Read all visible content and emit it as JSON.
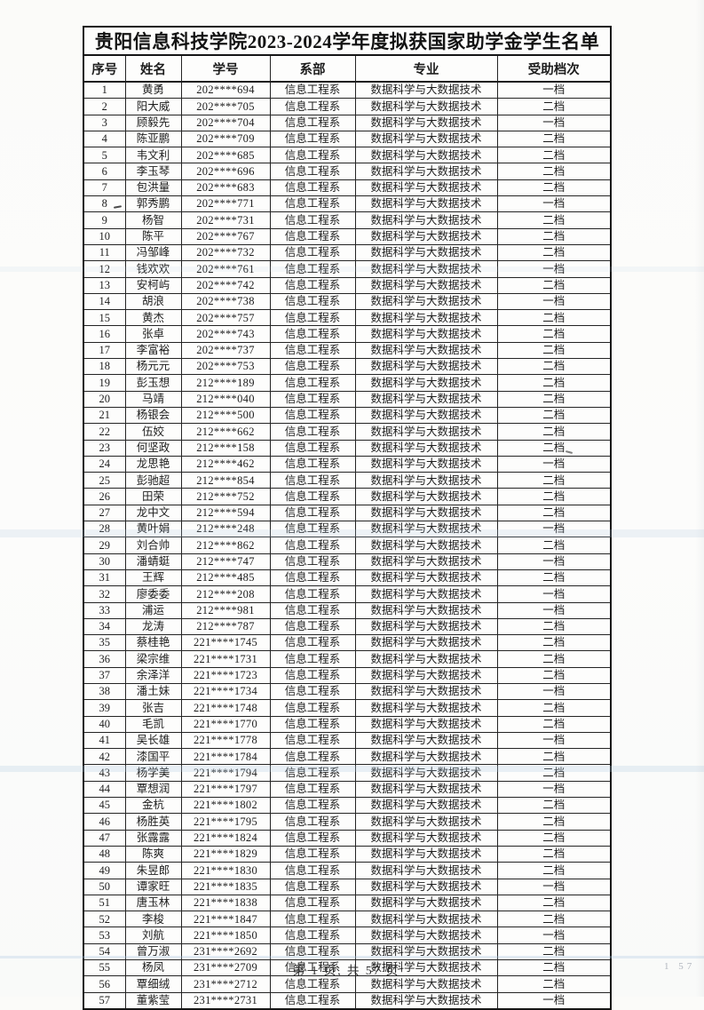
{
  "page": {
    "title": "贵阳信息科技学院2023-2024学年度拟获国家助学金学生名单",
    "footer": "第 1 页, 共 57 页",
    "edge_mark": "1 57"
  },
  "table": {
    "columns": [
      "序号",
      "姓名",
      "学号",
      "系部",
      "专业",
      "受助档次"
    ],
    "cell_names": [
      "cell-seq",
      "cell-name",
      "cell-student-id",
      "cell-department",
      "cell-major",
      "cell-grant-level"
    ],
    "rows": [
      [
        "1",
        "黄勇",
        "202****694",
        "信息工程系",
        "数据科学与大数据技术",
        "一档"
      ],
      [
        "2",
        "阳大威",
        "202****705",
        "信息工程系",
        "数据科学与大数据技术",
        "二档"
      ],
      [
        "3",
        "顾毅先",
        "202****704",
        "信息工程系",
        "数据科学与大数据技术",
        "一档"
      ],
      [
        "4",
        "陈亚鹏",
        "202****709",
        "信息工程系",
        "数据科学与大数据技术",
        "二档"
      ],
      [
        "5",
        "韦文利",
        "202****685",
        "信息工程系",
        "数据科学与大数据技术",
        "二档"
      ],
      [
        "6",
        "李玉琴",
        "202****696",
        "信息工程系",
        "数据科学与大数据技术",
        "二档"
      ],
      [
        "7",
        "包洪量",
        "202****683",
        "信息工程系",
        "数据科学与大数据技术",
        "二档"
      ],
      [
        "8",
        "郭秀鹏",
        "202****771",
        "信息工程系",
        "数据科学与大数据技术",
        "一档"
      ],
      [
        "9",
        "杨智",
        "202****731",
        "信息工程系",
        "数据科学与大数据技术",
        "二档"
      ],
      [
        "10",
        "陈平",
        "202****767",
        "信息工程系",
        "数据科学与大数据技术",
        "二档"
      ],
      [
        "11",
        "冯邹峰",
        "202****732",
        "信息工程系",
        "数据科学与大数据技术",
        "二档"
      ],
      [
        "12",
        "钱欢欢",
        "202****761",
        "信息工程系",
        "数据科学与大数据技术",
        "一档"
      ],
      [
        "13",
        "安柯屿",
        "202****742",
        "信息工程系",
        "数据科学与大数据技术",
        "二档"
      ],
      [
        "14",
        "胡浪",
        "202****738",
        "信息工程系",
        "数据科学与大数据技术",
        "一档"
      ],
      [
        "15",
        "黄杰",
        "202****757",
        "信息工程系",
        "数据科学与大数据技术",
        "二档"
      ],
      [
        "16",
        "张卓",
        "202****743",
        "信息工程系",
        "数据科学与大数据技术",
        "二档"
      ],
      [
        "17",
        "李富裕",
        "202****737",
        "信息工程系",
        "数据科学与大数据技术",
        "二档"
      ],
      [
        "18",
        "杨元元",
        "202****753",
        "信息工程系",
        "数据科学与大数据技术",
        "二档"
      ],
      [
        "19",
        "彭玉想",
        "212****189",
        "信息工程系",
        "数据科学与大数据技术",
        "二档"
      ],
      [
        "20",
        "马靖",
        "212****040",
        "信息工程系",
        "数据科学与大数据技术",
        "二档"
      ],
      [
        "21",
        "杨银会",
        "212****500",
        "信息工程系",
        "数据科学与大数据技术",
        "二档"
      ],
      [
        "22",
        "伍姣",
        "212****662",
        "信息工程系",
        "数据科学与大数据技术",
        "二档"
      ],
      [
        "23",
        "何坚政",
        "212****158",
        "信息工程系",
        "数据科学与大数据技术",
        "二档"
      ],
      [
        "24",
        "龙思艳",
        "212****462",
        "信息工程系",
        "数据科学与大数据技术",
        "一档"
      ],
      [
        "25",
        "彭驰超",
        "212****854",
        "信息工程系",
        "数据科学与大数据技术",
        "二档"
      ],
      [
        "26",
        "田荣",
        "212****752",
        "信息工程系",
        "数据科学与大数据技术",
        "二档"
      ],
      [
        "27",
        "龙中文",
        "212****594",
        "信息工程系",
        "数据科学与大数据技术",
        "二档"
      ],
      [
        "28",
        "黄叶娟",
        "212****248",
        "信息工程系",
        "数据科学与大数据技术",
        "一档"
      ],
      [
        "29",
        "刘合帅",
        "212****862",
        "信息工程系",
        "数据科学与大数据技术",
        "二档"
      ],
      [
        "30",
        "潘蜻蜓",
        "212****747",
        "信息工程系",
        "数据科学与大数据技术",
        "一档"
      ],
      [
        "31",
        "王辉",
        "212****485",
        "信息工程系",
        "数据科学与大数据技术",
        "二档"
      ],
      [
        "32",
        "廖委委",
        "212****208",
        "信息工程系",
        "数据科学与大数据技术",
        "一档"
      ],
      [
        "33",
        "浦运",
        "212****981",
        "信息工程系",
        "数据科学与大数据技术",
        "一档"
      ],
      [
        "34",
        "龙涛",
        "212****787",
        "信息工程系",
        "数据科学与大数据技术",
        "二档"
      ],
      [
        "35",
        "蔡桂艳",
        "221****1745",
        "信息工程系",
        "数据科学与大数据技术",
        "二档"
      ],
      [
        "36",
        "梁宗维",
        "221****1731",
        "信息工程系",
        "数据科学与大数据技术",
        "二档"
      ],
      [
        "37",
        "余泽洋",
        "221****1723",
        "信息工程系",
        "数据科学与大数据技术",
        "二档"
      ],
      [
        "38",
        "潘土妹",
        "221****1734",
        "信息工程系",
        "数据科学与大数据技术",
        "一档"
      ],
      [
        "39",
        "张吉",
        "221****1748",
        "信息工程系",
        "数据科学与大数据技术",
        "二档"
      ],
      [
        "40",
        "毛凯",
        "221****1770",
        "信息工程系",
        "数据科学与大数据技术",
        "二档"
      ],
      [
        "41",
        "吴长雄",
        "221****1778",
        "信息工程系",
        "数据科学与大数据技术",
        "一档"
      ],
      [
        "42",
        "漆国平",
        "221****1784",
        "信息工程系",
        "数据科学与大数据技术",
        "二档"
      ],
      [
        "43",
        "杨学美",
        "221****1794",
        "信息工程系",
        "数据科学与大数据技术",
        "二档"
      ],
      [
        "44",
        "覃想润",
        "221****1797",
        "信息工程系",
        "数据科学与大数据技术",
        "一档"
      ],
      [
        "45",
        "金杭",
        "221****1802",
        "信息工程系",
        "数据科学与大数据技术",
        "二档"
      ],
      [
        "46",
        "杨胜英",
        "221****1795",
        "信息工程系",
        "数据科学与大数据技术",
        "二档"
      ],
      [
        "47",
        "张露露",
        "221****1824",
        "信息工程系",
        "数据科学与大数据技术",
        "二档"
      ],
      [
        "48",
        "陈爽",
        "221****1829",
        "信息工程系",
        "数据科学与大数据技术",
        "二档"
      ],
      [
        "49",
        "朱昱郎",
        "221****1830",
        "信息工程系",
        "数据科学与大数据技术",
        "二档"
      ],
      [
        "50",
        "谭家旺",
        "221****1835",
        "信息工程系",
        "数据科学与大数据技术",
        "一档"
      ],
      [
        "51",
        "唐玉林",
        "221****1838",
        "信息工程系",
        "数据科学与大数据技术",
        "二档"
      ],
      [
        "52",
        "李梭",
        "221****1847",
        "信息工程系",
        "数据科学与大数据技术",
        "二档"
      ],
      [
        "53",
        "刘航",
        "221****1850",
        "信息工程系",
        "数据科学与大数据技术",
        "一档"
      ],
      [
        "54",
        "曾万淑",
        "231****2692",
        "信息工程系",
        "数据科学与大数据技术",
        "二档"
      ],
      [
        "55",
        "杨凤",
        "231****2709",
        "信息工程系",
        "数据科学与大数据技术",
        "二档"
      ],
      [
        "56",
        "覃细绒",
        "231****2712",
        "信息工程系",
        "数据科学与大数据技术",
        "二档"
      ],
      [
        "57",
        "董紫莹",
        "231****2731",
        "信息工程系",
        "数据科学与大数据技术",
        "一档"
      ]
    ]
  }
}
